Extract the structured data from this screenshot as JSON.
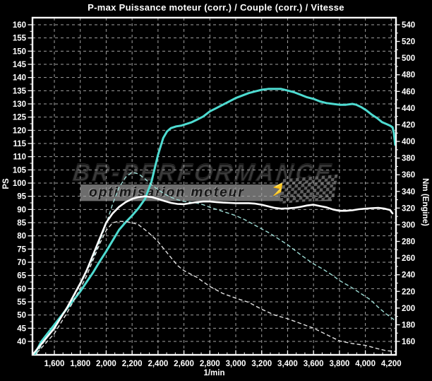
{
  "chart_data": {
    "type": "line",
    "title": "P-max Puissance moteur (corr.) / Couple (corr.) / Vitesse",
    "grid": true,
    "legend_position": "none",
    "x_axis": {
      "label": "1/min",
      "range": [
        1432,
        4238
      ],
      "tick_values": [
        1600,
        1800,
        2000,
        2200,
        2400,
        2600,
        2800,
        3000,
        3200,
        3400,
        3600,
        3800,
        4000,
        4200
      ],
      "tick_labels": [
        "1,600",
        "1,800",
        "2,000",
        "2,200",
        "2,400",
        "2,600",
        "2,800",
        "3,000",
        "3,200",
        "3,400",
        "3,600",
        "3,800",
        "4,000",
        "4,200"
      ]
    },
    "y_left_axis": {
      "label": "PS",
      "range": [
        40,
        160
      ],
      "step": 5,
      "tick_values": [
        160,
        155,
        150,
        145,
        140,
        135,
        130,
        125,
        120,
        115,
        110,
        105,
        100,
        95,
        90,
        85,
        80,
        75,
        70,
        65,
        60,
        55,
        50,
        45,
        40
      ],
      "tick_labels": [
        "160",
        "155",
        "150",
        "145",
        "140",
        "135",
        "130",
        "125",
        "120",
        "115",
        "110",
        "105",
        "100",
        "95",
        "90",
        "85",
        "80",
        "75",
        "70",
        "65",
        "60",
        "55",
        "50",
        "45",
        "40"
      ]
    },
    "y_right_axis": {
      "label": "Nm (Engine)",
      "range": [
        160,
        540
      ],
      "step": 20,
      "tick_values": [
        540,
        520,
        500,
        480,
        460,
        440,
        420,
        400,
        380,
        360,
        340,
        320,
        300,
        280,
        260,
        240,
        220,
        200,
        180,
        160
      ],
      "tick_labels": [
        "540",
        "520",
        "500",
        "480",
        "460",
        "440",
        "420",
        "400",
        "380",
        "360",
        "340",
        "320",
        "300",
        "280",
        "260",
        "240",
        "220",
        "200",
        "180",
        "160"
      ]
    },
    "series": [
      {
        "name": "couple-solid",
        "axis": "right",
        "unit": "Nm",
        "line": "solid",
        "color": "#4edbd1",
        "width": 3,
        "peak": {
          "value": 463,
          "rpm": 3300
        },
        "points": [
          [
            1432,
            140
          ],
          [
            1500,
            160
          ],
          [
            1600,
            180
          ],
          [
            1700,
            200
          ],
          [
            1800,
            220
          ],
          [
            1900,
            243
          ],
          [
            1950,
            256
          ],
          [
            2000,
            268
          ],
          [
            2050,
            281
          ],
          [
            2100,
            294
          ],
          [
            2150,
            303
          ],
          [
            2200,
            311
          ],
          [
            2250,
            320
          ],
          [
            2300,
            331
          ],
          [
            2350,
            352
          ],
          [
            2400,
            384
          ],
          [
            2440,
            404
          ],
          [
            2470,
            412
          ],
          [
            2500,
            416
          ],
          [
            2540,
            418
          ],
          [
            2580,
            419
          ],
          [
            2620,
            421
          ],
          [
            2660,
            423
          ],
          [
            2700,
            426
          ],
          [
            2750,
            430
          ],
          [
            2800,
            436
          ],
          [
            2850,
            440
          ],
          [
            2900,
            444
          ],
          [
            2950,
            448
          ],
          [
            3000,
            452
          ],
          [
            3050,
            455
          ],
          [
            3100,
            458
          ],
          [
            3150,
            460
          ],
          [
            3200,
            462
          ],
          [
            3250,
            463
          ],
          [
            3300,
            463
          ],
          [
            3350,
            463
          ],
          [
            3400,
            461
          ],
          [
            3450,
            459
          ],
          [
            3500,
            456
          ],
          [
            3550,
            453
          ],
          [
            3600,
            451
          ],
          [
            3650,
            448
          ],
          [
            3700,
            446
          ],
          [
            3750,
            445
          ],
          [
            3800,
            444
          ],
          [
            3850,
            444
          ],
          [
            3900,
            445
          ],
          [
            3930,
            444
          ],
          [
            3970,
            441
          ],
          [
            4010,
            437
          ],
          [
            4050,
            432
          ],
          [
            4090,
            428
          ],
          [
            4130,
            423
          ],
          [
            4160,
            421
          ],
          [
            4190,
            419
          ],
          [
            4210,
            417
          ],
          [
            4220,
            410
          ],
          [
            4230,
            396
          ]
        ]
      },
      {
        "name": "couple-dashed",
        "axis": "right",
        "unit": "Nm",
        "line": "dashed",
        "color": "#9edcd5",
        "width": 1.4,
        "peak": {
          "value": 363,
          "rpm": 2200
        },
        "points": [
          [
            1432,
            138
          ],
          [
            1500,
            155
          ],
          [
            1600,
            177
          ],
          [
            1700,
            200
          ],
          [
            1800,
            228
          ],
          [
            1850,
            244
          ],
          [
            1900,
            261
          ],
          [
            1950,
            280
          ],
          [
            2000,
            301
          ],
          [
            2050,
            325
          ],
          [
            2100,
            345
          ],
          [
            2150,
            357
          ],
          [
            2200,
            363
          ],
          [
            2250,
            361
          ],
          [
            2300,
            355
          ],
          [
            2350,
            348
          ],
          [
            2400,
            342
          ],
          [
            2450,
            337
          ],
          [
            2500,
            333
          ],
          [
            2550,
            330
          ],
          [
            2600,
            328
          ],
          [
            2650,
            327
          ],
          [
            2700,
            326
          ],
          [
            2750,
            324
          ],
          [
            2800,
            321
          ],
          [
            2900,
            316
          ],
          [
            3000,
            311
          ],
          [
            3070,
            306
          ],
          [
            3130,
            301
          ],
          [
            3200,
            295
          ],
          [
            3260,
            290
          ],
          [
            3320,
            284
          ],
          [
            3400,
            276
          ],
          [
            3500,
            264
          ],
          [
            3600,
            253
          ],
          [
            3670,
            247
          ],
          [
            3750,
            239
          ],
          [
            3800,
            233
          ],
          [
            3880,
            226
          ],
          [
            3960,
            218
          ],
          [
            4040,
            210
          ],
          [
            4100,
            201
          ],
          [
            4160,
            193
          ],
          [
            4230,
            185
          ]
        ]
      },
      {
        "name": "puissance-solid",
        "axis": "left",
        "unit": "PS",
        "line": "solid",
        "color": "#ffffff",
        "width": 2.6,
        "peak": {
          "value": 95,
          "rpm": 2300
        },
        "points": [
          [
            1432,
            35
          ],
          [
            1500,
            39
          ],
          [
            1600,
            45
          ],
          [
            1700,
            53
          ],
          [
            1800,
            62
          ],
          [
            1850,
            67
          ],
          [
            1900,
            73
          ],
          [
            1950,
            79
          ],
          [
            2000,
            85
          ],
          [
            2050,
            88.5
          ],
          [
            2100,
            91
          ],
          [
            2150,
            92.8
          ],
          [
            2200,
            94
          ],
          [
            2250,
            94.7
          ],
          [
            2300,
            95
          ],
          [
            2350,
            94.7
          ],
          [
            2400,
            94
          ],
          [
            2450,
            93.2
          ],
          [
            2500,
            92.5
          ],
          [
            2550,
            92.1
          ],
          [
            2600,
            92
          ],
          [
            2650,
            92.4
          ],
          [
            2700,
            92.8
          ],
          [
            2750,
            93
          ],
          [
            2800,
            93
          ],
          [
            2850,
            92.8
          ],
          [
            2900,
            92.6
          ],
          [
            2950,
            92.5
          ],
          [
            3000,
            92.4
          ],
          [
            3100,
            92.4
          ],
          [
            3150,
            92.2
          ],
          [
            3200,
            91.8
          ],
          [
            3250,
            91.2
          ],
          [
            3300,
            90.6
          ],
          [
            3350,
            90.3
          ],
          [
            3400,
            90.4
          ],
          [
            3450,
            90.6
          ],
          [
            3500,
            91
          ],
          [
            3550,
            91.5
          ],
          [
            3600,
            91.8
          ],
          [
            3650,
            91.3
          ],
          [
            3700,
            90.8
          ],
          [
            3750,
            90
          ],
          [
            3800,
            89.5
          ],
          [
            3850,
            89.5
          ],
          [
            3900,
            89.7
          ],
          [
            3950,
            90.1
          ],
          [
            4000,
            90.3
          ],
          [
            4050,
            90.5
          ],
          [
            4100,
            90.6
          ],
          [
            4150,
            90.3
          ],
          [
            4190,
            89.8
          ],
          [
            4210,
            88.5
          ]
        ]
      },
      {
        "name": "puissance-dashed",
        "axis": "left",
        "unit": "PS",
        "line": "dashed",
        "color": "#e2e2e2",
        "width": 1.4,
        "peak": {
          "value": 85.5,
          "rpm": 2100
        },
        "points": [
          [
            1432,
            34
          ],
          [
            1500,
            37.5
          ],
          [
            1600,
            43
          ],
          [
            1700,
            51
          ],
          [
            1800,
            60
          ],
          [
            1850,
            65
          ],
          [
            1900,
            71
          ],
          [
            1950,
            77
          ],
          [
            2000,
            82
          ],
          [
            2050,
            85
          ],
          [
            2100,
            85.5
          ],
          [
            2150,
            85.4
          ],
          [
            2200,
            85
          ],
          [
            2250,
            84.2
          ],
          [
            2300,
            82.3
          ],
          [
            2350,
            80.2
          ],
          [
            2400,
            77.8
          ],
          [
            2450,
            74.8
          ],
          [
            2500,
            71.8
          ],
          [
            2550,
            68.8
          ],
          [
            2600,
            66.8
          ],
          [
            2700,
            64.3
          ],
          [
            2800,
            60.8
          ],
          [
            2900,
            58.2
          ],
          [
            3000,
            56.4
          ],
          [
            3100,
            54.8
          ],
          [
            3200,
            52.2
          ],
          [
            3300,
            50
          ],
          [
            3400,
            48.6
          ],
          [
            3500,
            46.8
          ],
          [
            3600,
            45
          ],
          [
            3700,
            42.6
          ],
          [
            3800,
            40.2
          ],
          [
            3900,
            39.2
          ],
          [
            4000,
            38.5
          ],
          [
            4100,
            37.2
          ],
          [
            4160,
            36.5
          ],
          [
            4230,
            36.2
          ]
        ]
      }
    ]
  },
  "watermark": {
    "brand": "BR-PERFORMANCE",
    "tagline": "optimisation moteur",
    "bolt_icon": "⚡"
  },
  "colors": {
    "background": "#000000",
    "axis": "#ffffff",
    "grid": "#a2a2a2",
    "title_text": "#ffffff",
    "watermark_text": "#3a3a3a",
    "watermark_bar": "#6d6d6d"
  }
}
